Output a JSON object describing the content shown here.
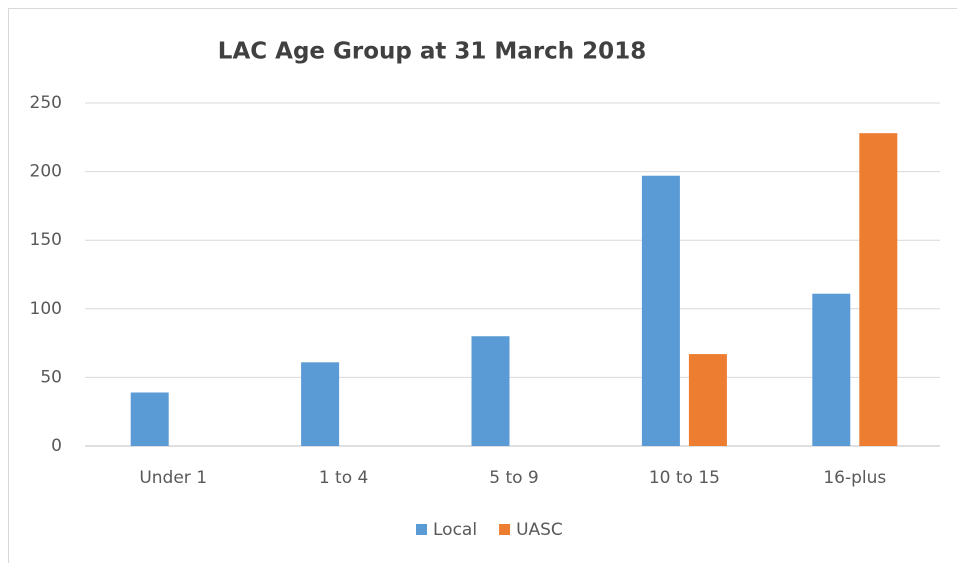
{
  "chart_data": {
    "type": "bar",
    "title": "LAC Age Group at 31 March 2018",
    "categories": [
      "Under 1",
      "1 to 4",
      "5 to 9",
      "10 to 15",
      "16-plus"
    ],
    "series": [
      {
        "name": "Local",
        "color": "#5b9bd5",
        "values": [
          39,
          61,
          80,
          197,
          111
        ]
      },
      {
        "name": "UASC",
        "color": "#ed7d31",
        "values": [
          0,
          0,
          0,
          67,
          228
        ]
      }
    ],
    "ylim": [
      0,
      250
    ],
    "yticks": [
      0,
      50,
      100,
      150,
      200,
      250
    ],
    "grid": true,
    "legend": "bottom"
  }
}
